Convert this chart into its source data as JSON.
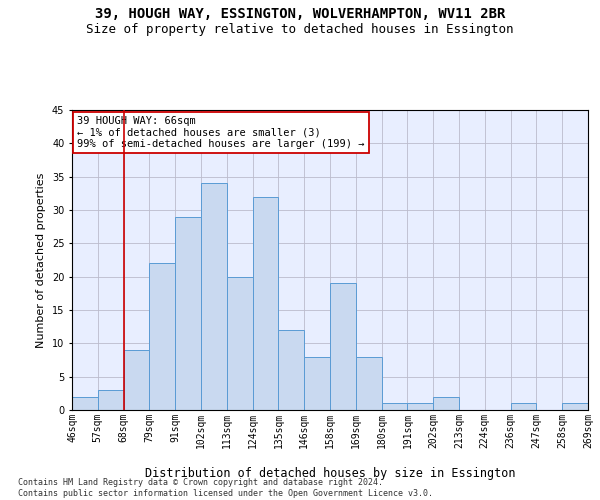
{
  "title1": "39, HOUGH WAY, ESSINGTON, WOLVERHAMPTON, WV11 2BR",
  "title2": "Size of property relative to detached houses in Essington",
  "xlabel": "Distribution of detached houses by size in Essington",
  "ylabel": "Number of detached properties",
  "bar_values": [
    2,
    3,
    9,
    22,
    29,
    34,
    20,
    32,
    12,
    8,
    19,
    8,
    1,
    1,
    2,
    0,
    0,
    1,
    0,
    1
  ],
  "bar_labels": [
    "46sqm",
    "57sqm",
    "68sqm",
    "79sqm",
    "91sqm",
    "102sqm",
    "113sqm",
    "124sqm",
    "135sqm",
    "146sqm",
    "158sqm",
    "169sqm",
    "180sqm",
    "191sqm",
    "202sqm",
    "213sqm",
    "224sqm",
    "236sqm",
    "247sqm",
    "258sqm",
    "269sqm"
  ],
  "bar_color": "#c9d9f0",
  "bar_edge_color": "#5a9bd4",
  "annotation_box_text": "39 HOUGH WAY: 66sqm\n← 1% of detached houses are smaller (3)\n99% of semi-detached houses are larger (199) →",
  "vline_color": "#cc0000",
  "vline_x_index": 2,
  "ylim": [
    0,
    45
  ],
  "yticks": [
    0,
    5,
    10,
    15,
    20,
    25,
    30,
    35,
    40,
    45
  ],
  "bg_color": "#e8eeff",
  "footnote": "Contains HM Land Registry data © Crown copyright and database right 2024.\nContains public sector information licensed under the Open Government Licence v3.0.",
  "title1_fontsize": 10,
  "title2_fontsize": 9,
  "xlabel_fontsize": 8.5,
  "ylabel_fontsize": 8,
  "tick_fontsize": 7,
  "annot_fontsize": 7.5,
  "footnote_fontsize": 6
}
